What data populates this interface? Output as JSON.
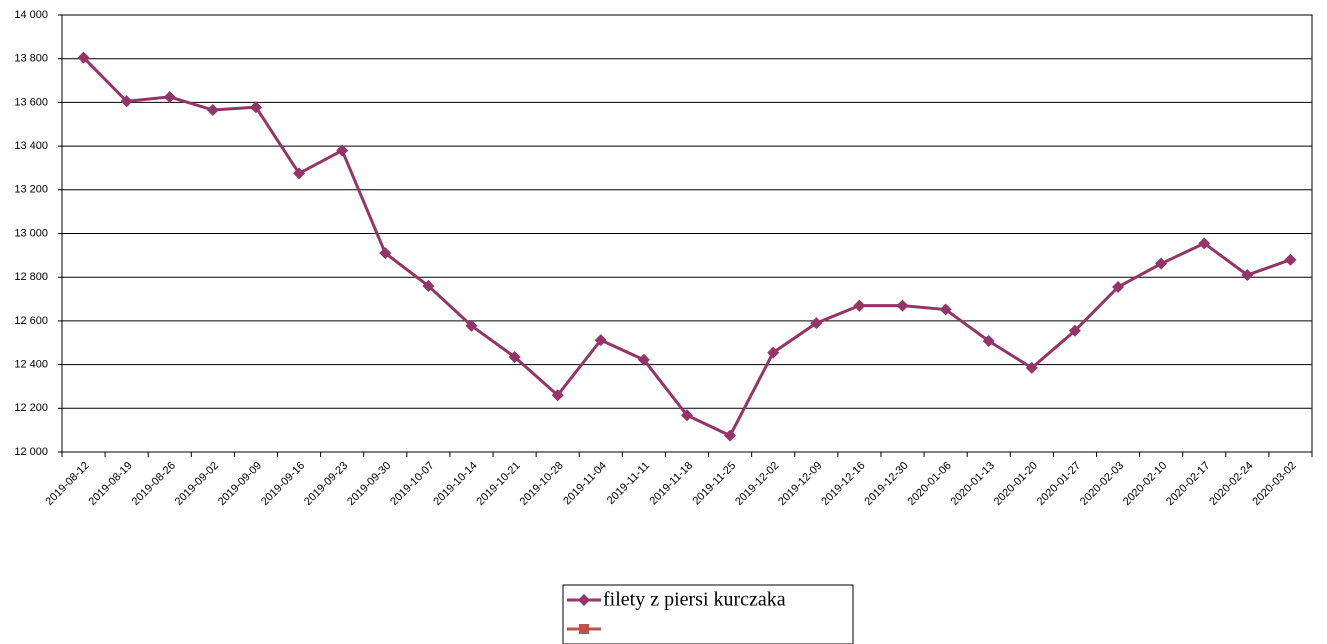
{
  "chart_data": {
    "type": "line",
    "categories": [
      "2019-08-12",
      "2019-08-19",
      "2019-08-26",
      "2019-09-02",
      "2019-09-09",
      "2019-09-16",
      "2019-09-23",
      "2019-09-30",
      "2019-10-07",
      "2019-10-14",
      "2019-10-21",
      "2019-10-28",
      "2019-11-04",
      "2019-11-11",
      "2019-11-18",
      "2019-11-25",
      "2019-12-02",
      "2019-12-09",
      "2019-12-16",
      "2019-12-30",
      "2020-01-06",
      "2020-01-13",
      "2020-01-20",
      "2020-01-27",
      "2020-02-03",
      "2020-02-10",
      "2020-02-17",
      "2020-02-24",
      "2020-03-02"
    ],
    "series": [
      {
        "name": "filety z piersi kurczaka",
        "color": "#953567",
        "marker": "diamond",
        "values": [
          13805,
          13605,
          13625,
          13565,
          13578,
          13275,
          13380,
          12910,
          12760,
          12578,
          12435,
          12260,
          12512,
          12422,
          12168,
          12075,
          12455,
          12590,
          12670,
          12670,
          12652,
          12508,
          12385,
          12555,
          12755,
          12862,
          12955,
          12810,
          12880
        ]
      },
      {
        "name": null,
        "color": "#c0504d",
        "marker": "square",
        "values": [
          null,
          null,
          null,
          null,
          null,
          null,
          null,
          null,
          null,
          null,
          null,
          null,
          null,
          null,
          null,
          null,
          null,
          null,
          null,
          null,
          null,
          null,
          null,
          null,
          null,
          null,
          null,
          null,
          null
        ]
      }
    ],
    "ylim": [
      12000,
      14000
    ],
    "yticks": [
      {
        "value": 12000,
        "label": "12 000"
      },
      {
        "value": 12200,
        "label": "12 200"
      },
      {
        "value": 12400,
        "label": "12 400"
      },
      {
        "value": 12600,
        "label": "12 600"
      },
      {
        "value": 12800,
        "label": "12 800"
      },
      {
        "value": 13000,
        "label": "13 000"
      },
      {
        "value": 13200,
        "label": "13 200"
      },
      {
        "value": 13400,
        "label": "13 400"
      },
      {
        "value": 13600,
        "label": "13 600"
      },
      {
        "value": 13800,
        "label": "13 800"
      },
      {
        "value": 14000,
        "label": "14 000"
      }
    ],
    "grid": true,
    "legend": "bottom"
  }
}
